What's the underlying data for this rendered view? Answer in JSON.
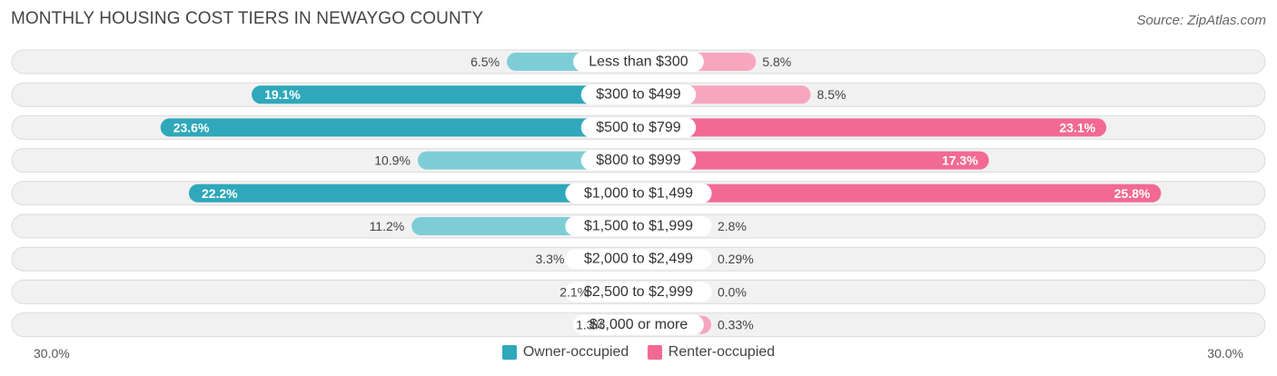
{
  "title": "MONTHLY HOUSING COST TIERS IN NEWAYGO COUNTY",
  "source": "Source: ZipAtlas.com",
  "colors": {
    "owner_dark": "#2ea8ba",
    "owner_light": "#7ecdd6",
    "renter_dark": "#f26a94",
    "renter_light": "#f7a6c0"
  },
  "chart_data": {
    "type": "bar",
    "orientation": "horizontal-diverging",
    "title": "MONTHLY HOUSING COST TIERS IN NEWAYGO COUNTY",
    "categories": [
      "Less than $300",
      "$300 to $499",
      "$500 to $799",
      "$800 to $999",
      "$1,000 to $1,499",
      "$1,500 to $1,999",
      "$2,000 to $2,499",
      "$2,500 to $2,999",
      "$3,000 or more"
    ],
    "series": [
      {
        "name": "Owner-occupied",
        "values": [
          6.5,
          19.1,
          23.6,
          10.9,
          22.2,
          11.2,
          3.3,
          2.1,
          1.3
        ],
        "labels": [
          "6.5%",
          "19.1%",
          "23.6%",
          "10.9%",
          "22.2%",
          "11.2%",
          "3.3%",
          "2.1%",
          "1.3%"
        ]
      },
      {
        "name": "Renter-occupied",
        "values": [
          5.8,
          8.5,
          23.1,
          17.3,
          25.8,
          2.8,
          0.29,
          0.0,
          0.33
        ],
        "labels": [
          "5.8%",
          "8.5%",
          "23.1%",
          "17.3%",
          "25.8%",
          "2.8%",
          "0.29%",
          "0.0%",
          "0.33%"
        ]
      }
    ],
    "xlim": [
      -30,
      30
    ],
    "axis_labels": {
      "left": "30.0%",
      "right": "30.0%"
    },
    "legend": {
      "position": "bottom-center",
      "entries": [
        "Owner-occupied",
        "Renter-occupied"
      ]
    }
  }
}
